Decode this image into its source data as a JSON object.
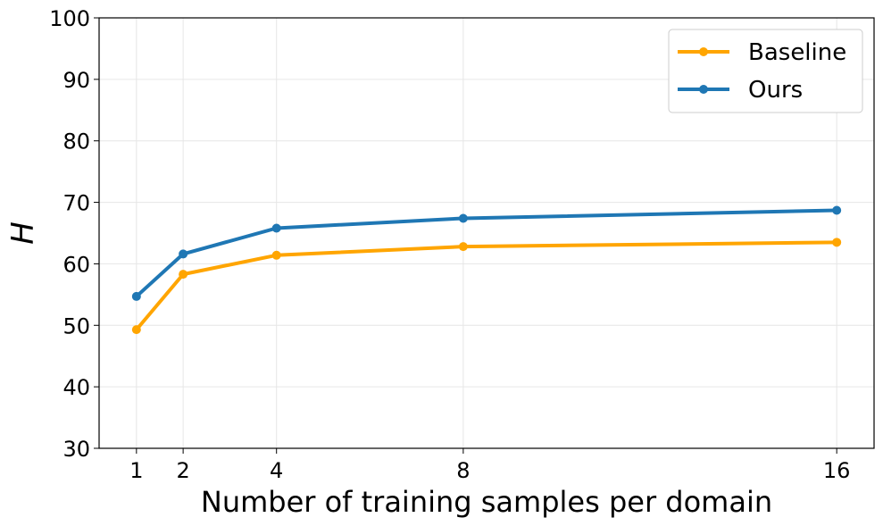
{
  "chart_data": {
    "type": "line",
    "title": "",
    "xlabel": "Number of training samples per domain",
    "ylabel": "H",
    "x": [
      1,
      2,
      4,
      8,
      16
    ],
    "xticks": [
      "1",
      "2",
      "4",
      "8",
      "16"
    ],
    "xlim": [
      0.2,
      16.8
    ],
    "ylim": [
      30,
      100
    ],
    "yticks": [
      "30",
      "40",
      "50",
      "60",
      "70",
      "80",
      "90",
      "100"
    ],
    "grid": true,
    "legend_position": "top-right",
    "series": [
      {
        "name": "Baseline",
        "color": "#FFA500",
        "values": [
          49.3,
          58.3,
          61.4,
          62.8,
          63.5
        ]
      },
      {
        "name": "Ours",
        "color": "#1F77B4",
        "values": [
          54.7,
          61.6,
          65.8,
          67.4,
          68.7
        ]
      }
    ]
  }
}
